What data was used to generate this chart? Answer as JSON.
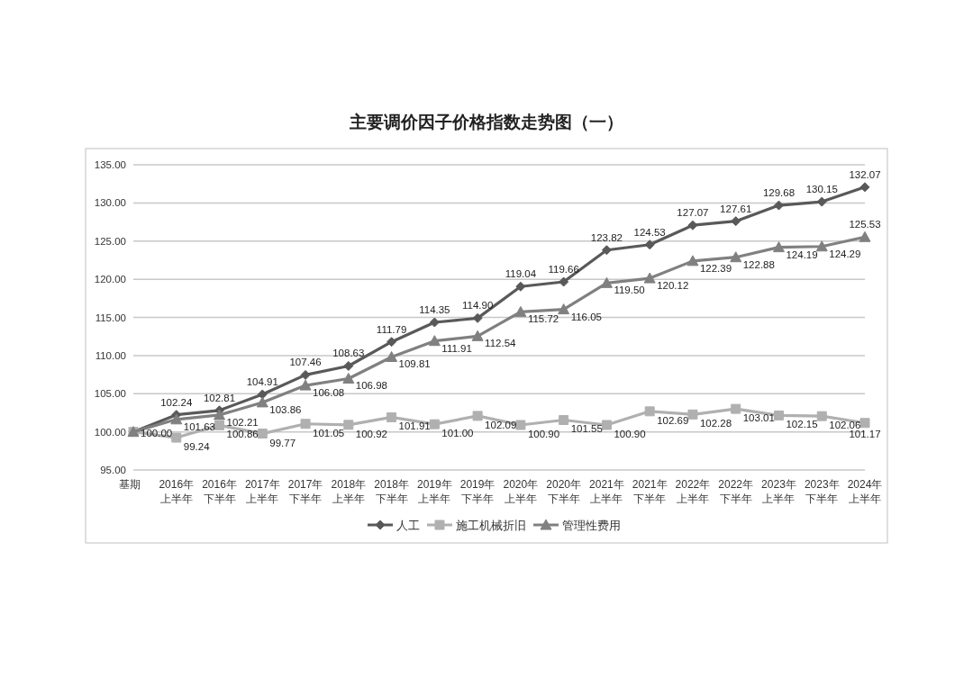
{
  "chart_data": {
    "type": "line",
    "title": "主要调价因子价格指数走势图（一）",
    "categories": [
      "基期",
      "2016年上半年",
      "2016年下半年",
      "2017年上半年",
      "2017年下半年",
      "2018年上半年",
      "2018年下半年",
      "2019年上半年",
      "2019年下半年",
      "2020年上半年",
      "2020年下半年",
      "2021年上半年",
      "2021年下半年",
      "2022年上半年",
      "2022年下半年",
      "2023年上半年",
      "2023年下半年",
      "2024年上半年"
    ],
    "series": [
      {
        "name": "人工",
        "color": "#595959",
        "marker": "diamond",
        "values": [
          100.0,
          102.24,
          102.81,
          104.91,
          107.46,
          108.63,
          111.79,
          114.35,
          114.9,
          119.04,
          119.66,
          123.82,
          124.53,
          127.07,
          127.61,
          129.68,
          130.15,
          132.07
        ],
        "value_labels": [
          "100.00",
          "102.24",
          "102.81",
          "104.91",
          "107.46",
          "108.63",
          "111.79",
          "114.35",
          "114.90",
          "119.04",
          "119.66",
          "123.82",
          "124.53",
          "127.07",
          "127.61",
          "129.68",
          "130.15",
          "132.07"
        ]
      },
      {
        "name": "施工机械折旧",
        "color": "#b0b0b0",
        "marker": "square",
        "values": [
          100.0,
          99.24,
          100.86,
          99.77,
          101.05,
          100.92,
          101.91,
          101.0,
          102.09,
          100.9,
          101.55,
          100.9,
          102.69,
          102.28,
          103.01,
          102.15,
          102.06,
          101.17
        ],
        "value_labels": [
          null,
          "99.24",
          "100.86",
          "99.77",
          "101.05",
          "100.92",
          "101.91",
          "101.00",
          "102.09",
          "100.90",
          "101.55",
          "100.90",
          "102.69",
          "102.28",
          "103.01",
          "102.15",
          "102.06",
          "101.17"
        ]
      },
      {
        "name": "管理性费用",
        "color": "#808080",
        "marker": "triangle",
        "values": [
          100.0,
          101.63,
          102.21,
          103.86,
          106.08,
          106.98,
          109.81,
          111.91,
          112.54,
          115.72,
          116.05,
          119.5,
          120.12,
          122.39,
          122.88,
          124.19,
          124.29,
          125.53
        ],
        "value_labels": [
          null,
          "101.63",
          "102.21",
          "103.86",
          "106.08",
          "106.98",
          "109.81",
          "111.91",
          "112.54",
          "115.72",
          "116.05",
          "119.50",
          "120.12",
          "122.39",
          "122.88",
          "124.19",
          "124.29",
          "125.53"
        ]
      }
    ],
    "ylim": [
      95,
      135
    ],
    "yticks": [
      {
        "value": 95,
        "label": "95.00"
      },
      {
        "value": 100,
        "label": "100.00"
      },
      {
        "value": 105,
        "label": "105.00"
      },
      {
        "value": 110,
        "label": "110.00"
      },
      {
        "value": 115,
        "label": "115.00"
      },
      {
        "value": 120,
        "label": "120.00"
      },
      {
        "value": 125,
        "label": "125.00"
      },
      {
        "value": 130,
        "label": "130.00"
      },
      {
        "value": 135,
        "label": "135.00"
      }
    ],
    "grid": "y",
    "legend": "bottom",
    "line_style": "solid"
  }
}
